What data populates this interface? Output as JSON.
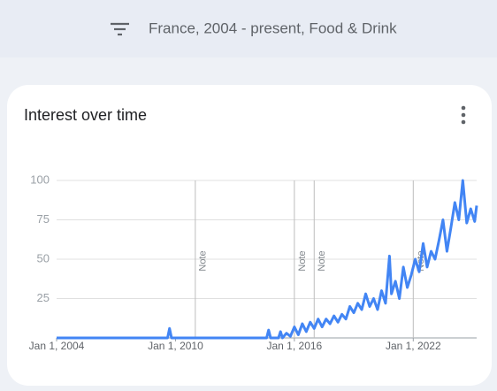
{
  "header": {
    "filter_text": "France, 2004 - present, Food & Drink"
  },
  "card": {
    "title": "Interest over time"
  },
  "chart_data": {
    "type": "line",
    "x": [
      2004,
      2009.6,
      2009.7,
      2009.8,
      2014.6,
      2014.7,
      2014.8,
      2015.2,
      2015.3,
      2015.4,
      2015.6,
      2015.8,
      2016.0,
      2016.2,
      2016.4,
      2016.6,
      2016.8,
      2017.0,
      2017.2,
      2017.4,
      2017.6,
      2017.8,
      2018.0,
      2018.2,
      2018.4,
      2018.6,
      2018.8,
      2019.0,
      2019.2,
      2019.4,
      2019.6,
      2019.8,
      2020.0,
      2020.2,
      2020.4,
      2020.6,
      2020.8,
      2020.9,
      2021.1,
      2021.3,
      2021.5,
      2021.7,
      2021.9,
      2022.1,
      2022.3,
      2022.5,
      2022.7,
      2022.9,
      2023.1,
      2023.3,
      2023.5,
      2023.7,
      2023.9,
      2024.1,
      2024.3,
      2024.5,
      2024.7,
      2024.9,
      2025.1,
      2025.2
    ],
    "series": [
      {
        "color": "#4285f4",
        "values": [
          0,
          0,
          6,
          0,
          0,
          5,
          0,
          0,
          4,
          0,
          3,
          1,
          7,
          2,
          9,
          4,
          10,
          6,
          12,
          7,
          12,
          9,
          14,
          10,
          15,
          12,
          20,
          16,
          22,
          18,
          28,
          20,
          25,
          18,
          30,
          22,
          52,
          28,
          36,
          25,
          45,
          32,
          40,
          50,
          42,
          60,
          45,
          55,
          50,
          62,
          75,
          55,
          70,
          86,
          75,
          100,
          73,
          82,
          74,
          84
        ]
      }
    ],
    "xlim": [
      2004,
      2025.2
    ],
    "xticks": [
      {
        "value": 2004,
        "label": "Jan 1, 2004"
      },
      {
        "value": 2010,
        "label": "Jan 1, 2010"
      },
      {
        "value": 2016,
        "label": "Jan 1, 2016"
      },
      {
        "value": 2022,
        "label": "Jan 1, 2022"
      }
    ],
    "ylim": [
      0,
      100
    ],
    "yticks": [
      25,
      50,
      75,
      100
    ],
    "grid": true,
    "annotations": [
      {
        "x": 2011,
        "label": "Note"
      },
      {
        "x": 2016,
        "label": "Note"
      },
      {
        "x": 2017,
        "label": "Note"
      },
      {
        "x": 2022,
        "label": "Note"
      }
    ]
  }
}
